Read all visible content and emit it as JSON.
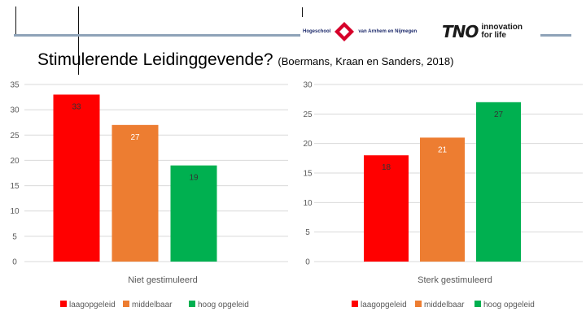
{
  "header": {
    "title": "Stimulerende Leidinggevende?",
    "citation": "(Boermans, Kraan en Sanders, 2018)",
    "logo_han_left": "Hogeschool",
    "logo_han_right": "van Arnhem en Nijmegen",
    "logo_tno_word": "TNO",
    "logo_tno_tagline_1": "innovation",
    "logo_tno_tagline_2": "for life"
  },
  "colors": {
    "laag": "#ff0000",
    "middel": "#ed7d31",
    "hoog": "#00b050",
    "grid": "#d9d9d9",
    "axis_text": "#595959",
    "rule": "#8ea2b8",
    "han_red": "#d6002a"
  },
  "chart_data": [
    {
      "type": "bar",
      "title": "",
      "xlabel": "Niet gestimuleerd",
      "ylabel": "",
      "ylim": [
        0,
        35
      ],
      "yticks": [
        "0",
        "5",
        "10",
        "15",
        "20",
        "25",
        "30",
        "35"
      ],
      "categories": [
        "laagopgeleid",
        "middelbaar",
        "hoog opgeleid"
      ],
      "values": [
        33,
        27,
        19
      ],
      "labels": [
        "33",
        "27",
        "19"
      ],
      "legend": [
        "laagopgeleid",
        "middelbaar",
        "hoog opgeleid"
      ],
      "legend_position": "bottom",
      "grid": true
    },
    {
      "type": "bar",
      "title": "",
      "xlabel": "Sterk gestimuleerd",
      "ylabel": "",
      "ylim": [
        0,
        30
      ],
      "yticks": [
        "0",
        "5",
        "10",
        "15",
        "20",
        "25",
        "30"
      ],
      "categories": [
        "laagopgeleid",
        "middelbaar",
        "hoog opgeleid"
      ],
      "values": [
        18,
        21,
        27
      ],
      "labels": [
        "18",
        "21",
        "27"
      ],
      "legend": [
        "laagopgeleid",
        "middelbaar",
        "hoog opgeleid"
      ],
      "legend_position": "bottom",
      "grid": true
    }
  ]
}
